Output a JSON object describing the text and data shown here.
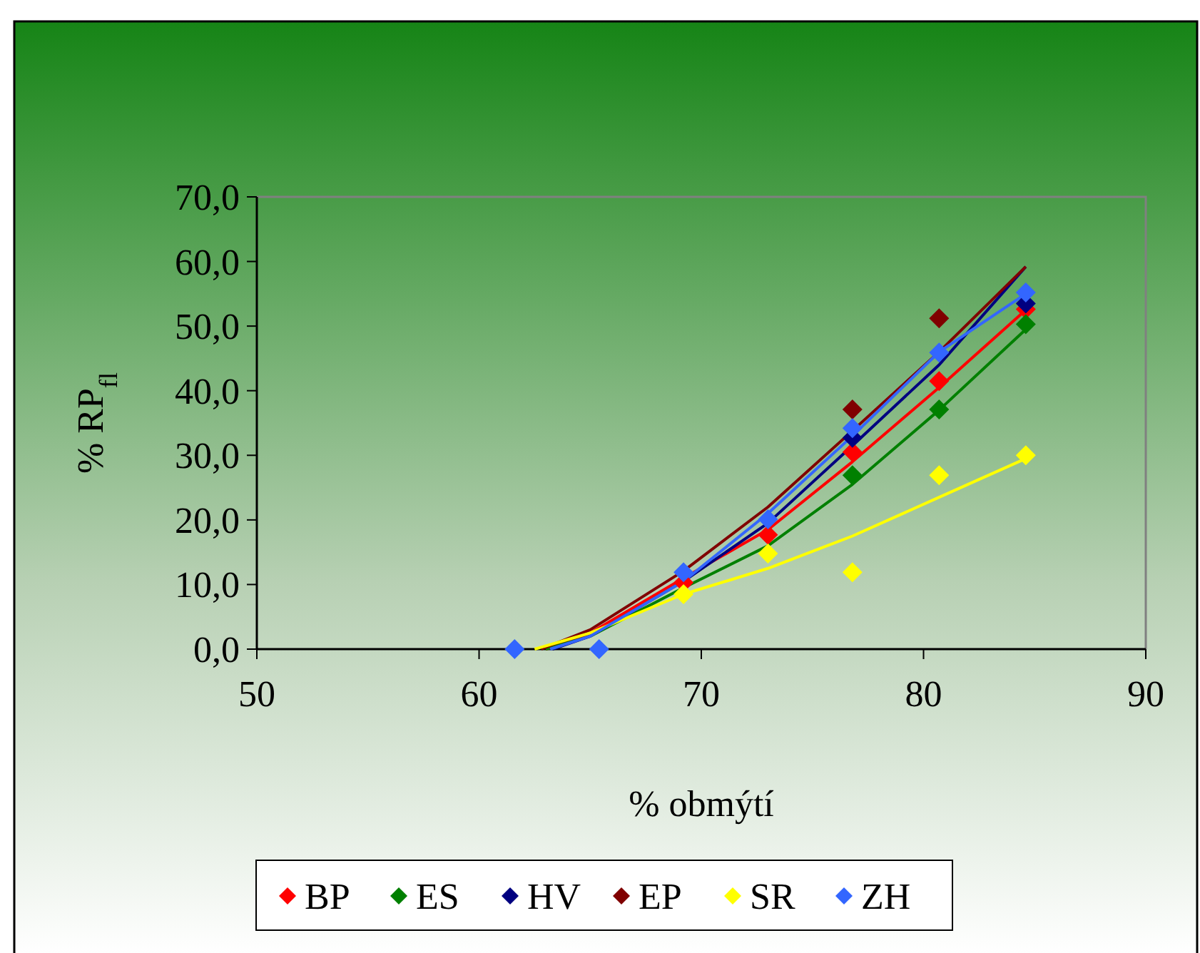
{
  "chart_data": {
    "type": "scatter",
    "xlabel": "% obmýtí",
    "ylabel": "% RP$_{fl}$",
    "xlim": [
      50,
      90
    ],
    "xticks": [
      50,
      60,
      70,
      80,
      90
    ],
    "ylim": [
      0,
      70
    ],
    "yticks": [
      {
        "value": 0,
        "label": "0,0"
      },
      {
        "value": 10,
        "label": "10,0"
      },
      {
        "value": 20,
        "label": "20,0"
      },
      {
        "value": 30,
        "label": "30,0"
      },
      {
        "value": 40,
        "label": "40,0"
      },
      {
        "value": 50,
        "label": "50,0"
      },
      {
        "value": 60,
        "label": "60,0"
      },
      {
        "value": 70,
        "label": "70,0"
      }
    ],
    "legend": "bottom",
    "marker": "diamond",
    "series": [
      {
        "name": "BP",
        "color": "#ff0000",
        "x": [
          69.2,
          73,
          76.8,
          80.7,
          84.6
        ],
        "values": [
          10.3,
          17.7,
          30.5,
          41.5,
          52.6
        ]
      },
      {
        "name": "ES",
        "color": "#008000",
        "x": [
          76.8,
          80.7,
          84.6
        ],
        "values": [
          26.9,
          37.1,
          50.3
        ]
      },
      {
        "name": "HV",
        "color": "#000080",
        "x": [
          76.8,
          84.6
        ],
        "values": [
          32.7,
          53.5
        ]
      },
      {
        "name": "EP",
        "color": "#800000",
        "x": [
          76.8,
          80.7
        ],
        "values": [
          37.1,
          51.2
        ]
      },
      {
        "name": "SR",
        "color": "#ffff00",
        "x": [
          69.2,
          73,
          76.8,
          80.7,
          84.6
        ],
        "values": [
          8.5,
          14.8,
          11.9,
          26.9,
          30
        ]
      },
      {
        "name": "ZH",
        "color": "#3366ff",
        "x": [
          61.6,
          65.4,
          69.2,
          73,
          76.8,
          80.7,
          84.6
        ],
        "values": [
          0,
          0,
          11.9,
          20.1,
          34.2,
          45.9,
          55.2
        ]
      },
      {
        "color": "#ff0000",
        "type": "line",
        "marker": "none",
        "x": [
          63,
          65,
          69.2,
          73,
          76.8,
          80.7,
          84.6
        ],
        "values": [
          0,
          2.5,
          11,
          18.5,
          29,
          40.5,
          52.5
        ]
      },
      {
        "color": "#008000",
        "type": "line",
        "marker": "none",
        "x": [
          63,
          65,
          69.2,
          73,
          76.8,
          80.7,
          84.6
        ],
        "values": [
          0,
          2,
          9.5,
          16,
          25.5,
          37,
          49.5
        ]
      },
      {
        "color": "#000080",
        "type": "line",
        "marker": "none",
        "x": [
          63.3,
          65,
          69.2,
          73,
          76.8,
          80.7,
          84.6
        ],
        "values": [
          0,
          2,
          10.5,
          19.5,
          31.5,
          44,
          59.2
        ]
      },
      {
        "color": "#800000",
        "type": "line",
        "marker": "none",
        "x": [
          62.8,
          65,
          69.2,
          73,
          76.8,
          80.7,
          84.6
        ],
        "values": [
          0,
          3,
          12.1,
          22,
          33.8,
          46,
          59.2
        ]
      },
      {
        "color": "#ffff00",
        "type": "line",
        "marker": "none",
        "x": [
          62.5,
          65,
          69.2,
          73,
          76.8,
          80.7,
          84.6
        ],
        "values": [
          0,
          2.5,
          8.5,
          12.5,
          17.5,
          23.5,
          29.5
        ]
      },
      {
        "color": "#3366ff",
        "type": "line",
        "marker": "none",
        "x": [
          63.2,
          65,
          69.2,
          73,
          76.8,
          80.7,
          84.6
        ],
        "values": [
          0,
          2,
          10.5,
          21,
          33,
          46,
          55
        ]
      }
    ]
  }
}
